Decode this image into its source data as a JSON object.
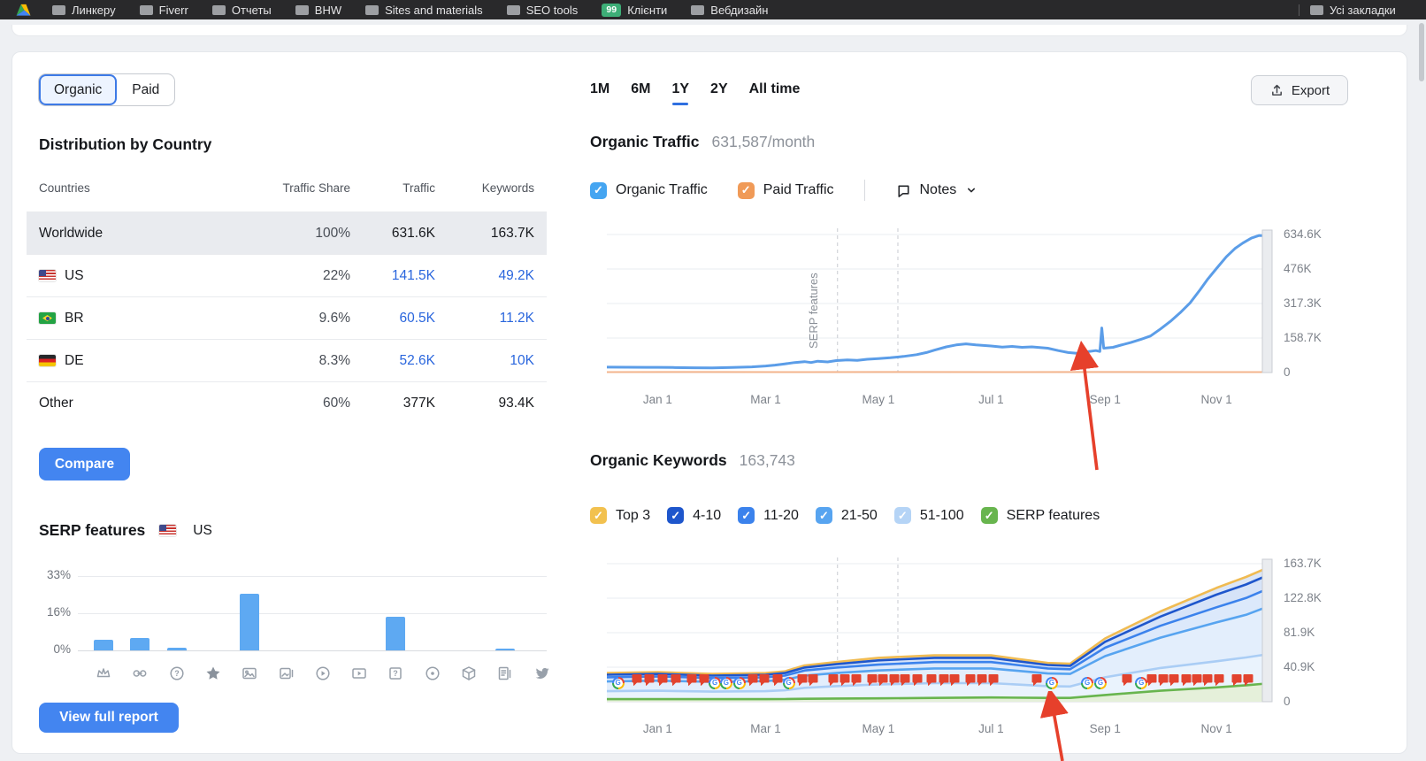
{
  "bookmarks_bar": {
    "items": [
      {
        "label": "Линкеру"
      },
      {
        "label": "Fiverr"
      },
      {
        "label": "Отчеты"
      },
      {
        "label": "BHW"
      },
      {
        "label": "Sites and materials"
      },
      {
        "label": "SEO tools"
      },
      {
        "label": "Клієнти",
        "badge": "99",
        "badge_color": "#3dae77"
      },
      {
        "label": "Вебдизайн"
      }
    ],
    "right_item": {
      "label": "Усі закладки"
    }
  },
  "left_panel": {
    "toggle": {
      "options": [
        "Organic",
        "Paid"
      ],
      "selected": "Organic"
    },
    "country_section": {
      "title": "Distribution by Country",
      "columns": [
        "Countries",
        "Traffic Share",
        "Traffic",
        "Keywords"
      ],
      "rows": [
        {
          "country": "Worldwide",
          "flag": "",
          "share": "100%",
          "share_pct": 100,
          "traffic": "631.6K",
          "keywords": "163.7K",
          "selected": true,
          "link": false
        },
        {
          "country": "US",
          "flag": "us",
          "share": "22%",
          "share_pct": 22,
          "traffic": "141.5K",
          "keywords": "49.2K",
          "selected": false,
          "link": true
        },
        {
          "country": "BR",
          "flag": "br",
          "share": "9.6%",
          "share_pct": 9.6,
          "traffic": "60.5K",
          "keywords": "11.2K",
          "selected": false,
          "link": true
        },
        {
          "country": "DE",
          "flag": "de",
          "share": "8.3%",
          "share_pct": 8.3,
          "traffic": "52.6K",
          "keywords": "10K",
          "selected": false,
          "link": true
        },
        {
          "country": "Other",
          "flag": "",
          "share": "60%",
          "share_pct": 60,
          "traffic": "377K",
          "keywords": "93.4K",
          "selected": false,
          "link": false
        }
      ],
      "compare_label": "Compare"
    },
    "serp_section": {
      "title": "SERP features",
      "region": "US",
      "region_flag": "us",
      "y_ticks": [
        "33%",
        "16%",
        "0%"
      ],
      "bars": [
        {
          "icon": "crown",
          "value": 4.6
        },
        {
          "icon": "link",
          "value": 5.6
        },
        {
          "icon": "question-circle",
          "value": 1.1
        },
        {
          "icon": "star",
          "value": 0
        },
        {
          "icon": "image",
          "value": 25
        },
        {
          "icon": "image-carousel",
          "value": 0
        },
        {
          "icon": "play-circle",
          "value": 0
        },
        {
          "icon": "video",
          "value": 0
        },
        {
          "icon": "faq",
          "value": 15
        },
        {
          "icon": "target",
          "value": 0
        },
        {
          "icon": "package",
          "value": 0
        },
        {
          "icon": "news",
          "value": 0.8
        },
        {
          "icon": "twitter",
          "value": 0
        }
      ],
      "view_report_label": "View full report"
    }
  },
  "right_panel": {
    "time_tabs": {
      "options": [
        "1M",
        "6M",
        "1Y",
        "2Y",
        "All time"
      ],
      "selected": "1Y"
    },
    "export_label": "Export",
    "traffic_section": {
      "title": "Organic Traffic",
      "value": "631,587/month",
      "legend": [
        {
          "label": "Organic Traffic",
          "color": "#45a5f1",
          "checked": true
        },
        {
          "label": "Paid Traffic",
          "color": "#f09a57",
          "checked": true
        }
      ],
      "notes_label": "Notes"
    },
    "keywords_section": {
      "title": "Organic Keywords",
      "value": "163,743",
      "legend": [
        {
          "label": "Top 3",
          "color": "#f2c14f",
          "checked": true
        },
        {
          "label": "4-10",
          "color": "#1e56cc",
          "checked": true
        },
        {
          "label": "11-20",
          "color": "#3b82ec",
          "checked": true
        },
        {
          "label": "21-50",
          "color": "#57a4f0",
          "checked": true
        },
        {
          "label": "51-100",
          "color": "#b5d4f6",
          "checked": true
        },
        {
          "label": "SERP features",
          "color": "#68b54e",
          "checked": true
        }
      ]
    }
  },
  "chart_data": [
    {
      "type": "line",
      "title": "Organic Traffic",
      "unit": "visits",
      "ymax": 634.6,
      "y_ticks": [
        "634.6K",
        "476K",
        "317.3K",
        "158.7K",
        "0"
      ],
      "x_ticks": [
        {
          "label": "Jan 1",
          "f": 0.077
        },
        {
          "label": "Mar 1",
          "f": 0.241
        },
        {
          "label": "May 1",
          "f": 0.412
        },
        {
          "label": "Jul 1",
          "f": 0.583
        },
        {
          "label": "Sep 1",
          "f": 0.756
        },
        {
          "label": "Nov 1",
          "f": 0.925
        }
      ],
      "note_lines": [
        0.35,
        0.4416
      ],
      "note_label": "SERP features",
      "series": [
        {
          "name": "Paid Traffic",
          "color": "#f3b48c",
          "width": 2,
          "fill": "#fdf1e8",
          "points": [
            [
              0,
              2
            ],
            [
              0.15,
              2.5
            ],
            [
              0.3,
              2
            ],
            [
              0.45,
              2.5
            ],
            [
              0.6,
              2
            ],
            [
              0.75,
              2.3
            ],
            [
              0.9,
              2
            ],
            [
              1,
              2.2
            ]
          ]
        },
        {
          "name": "Organic Traffic",
          "color": "#5b9de8",
          "width": 3,
          "points": [
            [
              0,
              25
            ],
            [
              0.03,
              24.5
            ],
            [
              0.06,
              24
            ],
            [
              0.077,
              24
            ],
            [
              0.1,
              23
            ],
            [
              0.13,
              22
            ],
            [
              0.16,
              21
            ],
            [
              0.19,
              23
            ],
            [
              0.22,
              26
            ],
            [
              0.241,
              30
            ],
            [
              0.255,
              34
            ],
            [
              0.27,
              40
            ],
            [
              0.285,
              46
            ],
            [
              0.3,
              50
            ],
            [
              0.31,
              46
            ],
            [
              0.32,
              52
            ],
            [
              0.335,
              49
            ],
            [
              0.348,
              55
            ],
            [
              0.365,
              58
            ],
            [
              0.38,
              56
            ],
            [
              0.395,
              61
            ],
            [
              0.412,
              64
            ],
            [
              0.43,
              68
            ],
            [
              0.45,
              74
            ],
            [
              0.47,
              82
            ],
            [
              0.485,
              92
            ],
            [
              0.497,
              103
            ],
            [
              0.515,
              118
            ],
            [
              0.53,
              127
            ],
            [
              0.545,
              132
            ],
            [
              0.56,
              127
            ],
            [
              0.583,
              122
            ],
            [
              0.6,
              117
            ],
            [
              0.615,
              120
            ],
            [
              0.63,
              116
            ],
            [
              0.645,
              118
            ],
            [
              0.669,
              112
            ],
            [
              0.685,
              101
            ],
            [
              0.7,
              92
            ],
            [
              0.715,
              88
            ],
            [
              0.73,
              96
            ],
            [
              0.742,
              101
            ],
            [
              0.748,
              97
            ],
            [
              0.751,
              205
            ],
            [
              0.754,
              112
            ],
            [
              0.768,
              116
            ],
            [
              0.78,
              126
            ],
            [
              0.795,
              138
            ],
            [
              0.81,
              152
            ],
            [
              0.825,
              168
            ],
            [
              0.84,
              200
            ],
            [
              0.855,
              235
            ],
            [
              0.87,
              275
            ],
            [
              0.885,
              320
            ],
            [
              0.9,
              380
            ],
            [
              0.912,
              430
            ],
            [
              0.925,
              478
            ],
            [
              0.94,
              532
            ],
            [
              0.953,
              570
            ],
            [
              0.965,
              595
            ],
            [
              0.978,
              618
            ],
            [
              0.99,
              630
            ],
            [
              1,
              629
            ]
          ]
        }
      ]
    },
    {
      "type": "stacked-line",
      "title": "Organic Keywords",
      "unit": "keywords",
      "ymax": 163.7,
      "y_ticks": [
        "163.7K",
        "122.8K",
        "81.9K",
        "40.9K",
        "0"
      ],
      "x_ticks": [
        {
          "label": "Jan 1",
          "f": 0.077
        },
        {
          "label": "Mar 1",
          "f": 0.241
        },
        {
          "label": "May 1",
          "f": 0.412
        },
        {
          "label": "Jul 1",
          "f": 0.583
        },
        {
          "label": "Sep 1",
          "f": 0.756
        },
        {
          "label": "Nov 1",
          "f": 0.925
        }
      ],
      "note_lines": [
        0.35,
        0.4416
      ],
      "x": [
        0,
        0.077,
        0.16,
        0.241,
        0.27,
        0.3,
        0.348,
        0.412,
        0.497,
        0.583,
        0.669,
        0.703,
        0.756,
        0.84,
        0.925,
        0.97,
        1
      ],
      "band_fills": [
        "#dbe6f7",
        "#d6e3f8",
        "#dce9fb",
        "#e3eefc",
        "#eaf3fd",
        "#e5f0da"
      ],
      "series": [
        {
          "name": "Top 3",
          "color": "#f0bb52",
          "values": [
            34,
            35,
            33,
            34,
            36,
            43,
            47,
            52,
            55,
            55,
            46,
            45,
            75,
            107,
            135,
            148,
            158
          ]
        },
        {
          "name": "4-10",
          "color": "#1e56cc",
          "values": [
            32,
            33,
            31,
            32,
            34,
            40.5,
            44.5,
            49,
            52,
            52,
            43.5,
            42.5,
            71,
            101,
            127,
            139,
            149
          ]
        },
        {
          "name": "11-20",
          "color": "#3b82ec",
          "values": [
            29,
            30,
            28,
            29,
            31,
            37,
            40.5,
            44,
            47,
            47,
            39.5,
            38.5,
            64,
            90,
            112,
            123,
            133
          ]
        },
        {
          "name": "21-50",
          "color": "#57a4f0",
          "values": [
            24,
            25,
            23.5,
            24.5,
            26,
            31,
            34,
            37,
            39.5,
            39.5,
            33.5,
            33,
            54,
            76,
            94,
            103,
            112
          ]
        },
        {
          "name": "51-100",
          "color": "#aacdf5",
          "values": [
            12.5,
            13,
            12,
            12.5,
            13.5,
            16.5,
            18.5,
            20.5,
            22,
            22,
            18.5,
            18,
            29,
            40,
            48,
            52.5,
            56
          ]
        },
        {
          "name": "SERP features",
          "color": "#68b54e",
          "values": [
            3,
            3,
            3,
            3,
            3.2,
            3.5,
            3.8,
            4,
            4.5,
            5,
            4.5,
            4.5,
            8,
            13,
            17,
            19.5,
            21.5
          ]
        }
      ],
      "markers": [
        {
          "t": "g",
          "f": 0.017
        },
        {
          "t": "p",
          "f": 0.045
        },
        {
          "t": "p",
          "f": 0.065
        },
        {
          "t": "p",
          "f": 0.085
        },
        {
          "t": "p",
          "f": 0.105
        },
        {
          "t": "p",
          "f": 0.129
        },
        {
          "t": "p",
          "f": 0.147
        },
        {
          "t": "g",
          "f": 0.164
        },
        {
          "t": "g",
          "f": 0.181
        },
        {
          "t": "g",
          "f": 0.201
        },
        {
          "t": "p",
          "f": 0.221
        },
        {
          "t": "p",
          "f": 0.239
        },
        {
          "t": "p",
          "f": 0.259
        },
        {
          "t": "g",
          "f": 0.276
        },
        {
          "t": "p",
          "f": 0.296
        },
        {
          "t": "p",
          "f": 0.313
        },
        {
          "t": "p",
          "f": 0.344
        },
        {
          "t": "p",
          "f": 0.361
        },
        {
          "t": "p",
          "f": 0.379
        },
        {
          "t": "p",
          "f": 0.403
        },
        {
          "t": "p",
          "f": 0.419
        },
        {
          "t": "p",
          "f": 0.436
        },
        {
          "t": "p",
          "f": 0.453
        },
        {
          "t": "p",
          "f": 0.471
        },
        {
          "t": "p",
          "f": 0.493
        },
        {
          "t": "p",
          "f": 0.511
        },
        {
          "t": "p",
          "f": 0.528
        },
        {
          "t": "p",
          "f": 0.552
        },
        {
          "t": "p",
          "f": 0.569
        },
        {
          "t": "p",
          "f": 0.587
        },
        {
          "t": "p",
          "f": 0.653
        },
        {
          "t": "g",
          "f": 0.675
        },
        {
          "t": "g",
          "f": 0.729
        },
        {
          "t": "g",
          "f": 0.749
        },
        {
          "t": "p",
          "f": 0.789
        },
        {
          "t": "g",
          "f": 0.811
        },
        {
          "t": "p",
          "f": 0.827
        },
        {
          "t": "p",
          "f": 0.844
        },
        {
          "t": "p",
          "f": 0.861
        },
        {
          "t": "p",
          "f": 0.879
        },
        {
          "t": "p",
          "f": 0.895
        },
        {
          "t": "p",
          "f": 0.912
        },
        {
          "t": "p",
          "f": 0.929
        },
        {
          "t": "p",
          "f": 0.956
        },
        {
          "t": "p",
          "f": 0.973
        }
      ]
    }
  ]
}
